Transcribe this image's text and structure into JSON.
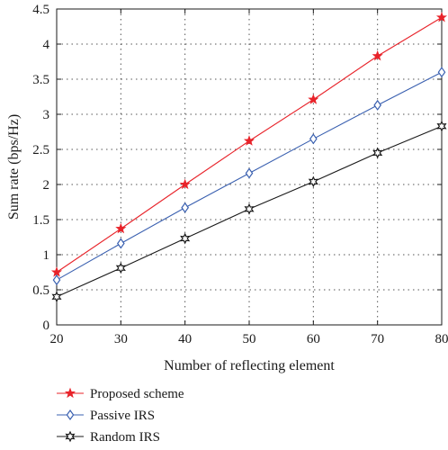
{
  "chart_data": {
    "type": "line",
    "title": "",
    "xlabel": "Number of reflecting element",
    "ylabel": "Sum rate (bps/Hz)",
    "x": [
      20,
      30,
      40,
      50,
      60,
      70,
      80
    ],
    "xlim": [
      20,
      80
    ],
    "ylim": [
      0,
      4.5
    ],
    "xticks": [
      "20",
      "30",
      "40",
      "50",
      "60",
      "70",
      "80"
    ],
    "yticks": [
      "0",
      "0.5",
      "1",
      "1.5",
      "2",
      "2.5",
      "3",
      "3.5",
      "4",
      "4.5"
    ],
    "grid": "dotted",
    "legend_position": "bottom",
    "series": [
      {
        "name": "Proposed scheme",
        "color": "#e8232a",
        "marker": "star",
        "values": [
          0.75,
          1.37,
          2.0,
          2.62,
          3.21,
          3.83,
          4.38
        ]
      },
      {
        "name": "Passive IRS",
        "color": "#3a60b0",
        "marker": "diamond",
        "values": [
          0.64,
          1.16,
          1.67,
          2.16,
          2.65,
          3.13,
          3.6
        ]
      },
      {
        "name": "Random IRS",
        "color": "#1a1a1a",
        "marker": "hexagram",
        "values": [
          0.4,
          0.81,
          1.23,
          1.65,
          2.04,
          2.45,
          2.83
        ]
      }
    ]
  }
}
